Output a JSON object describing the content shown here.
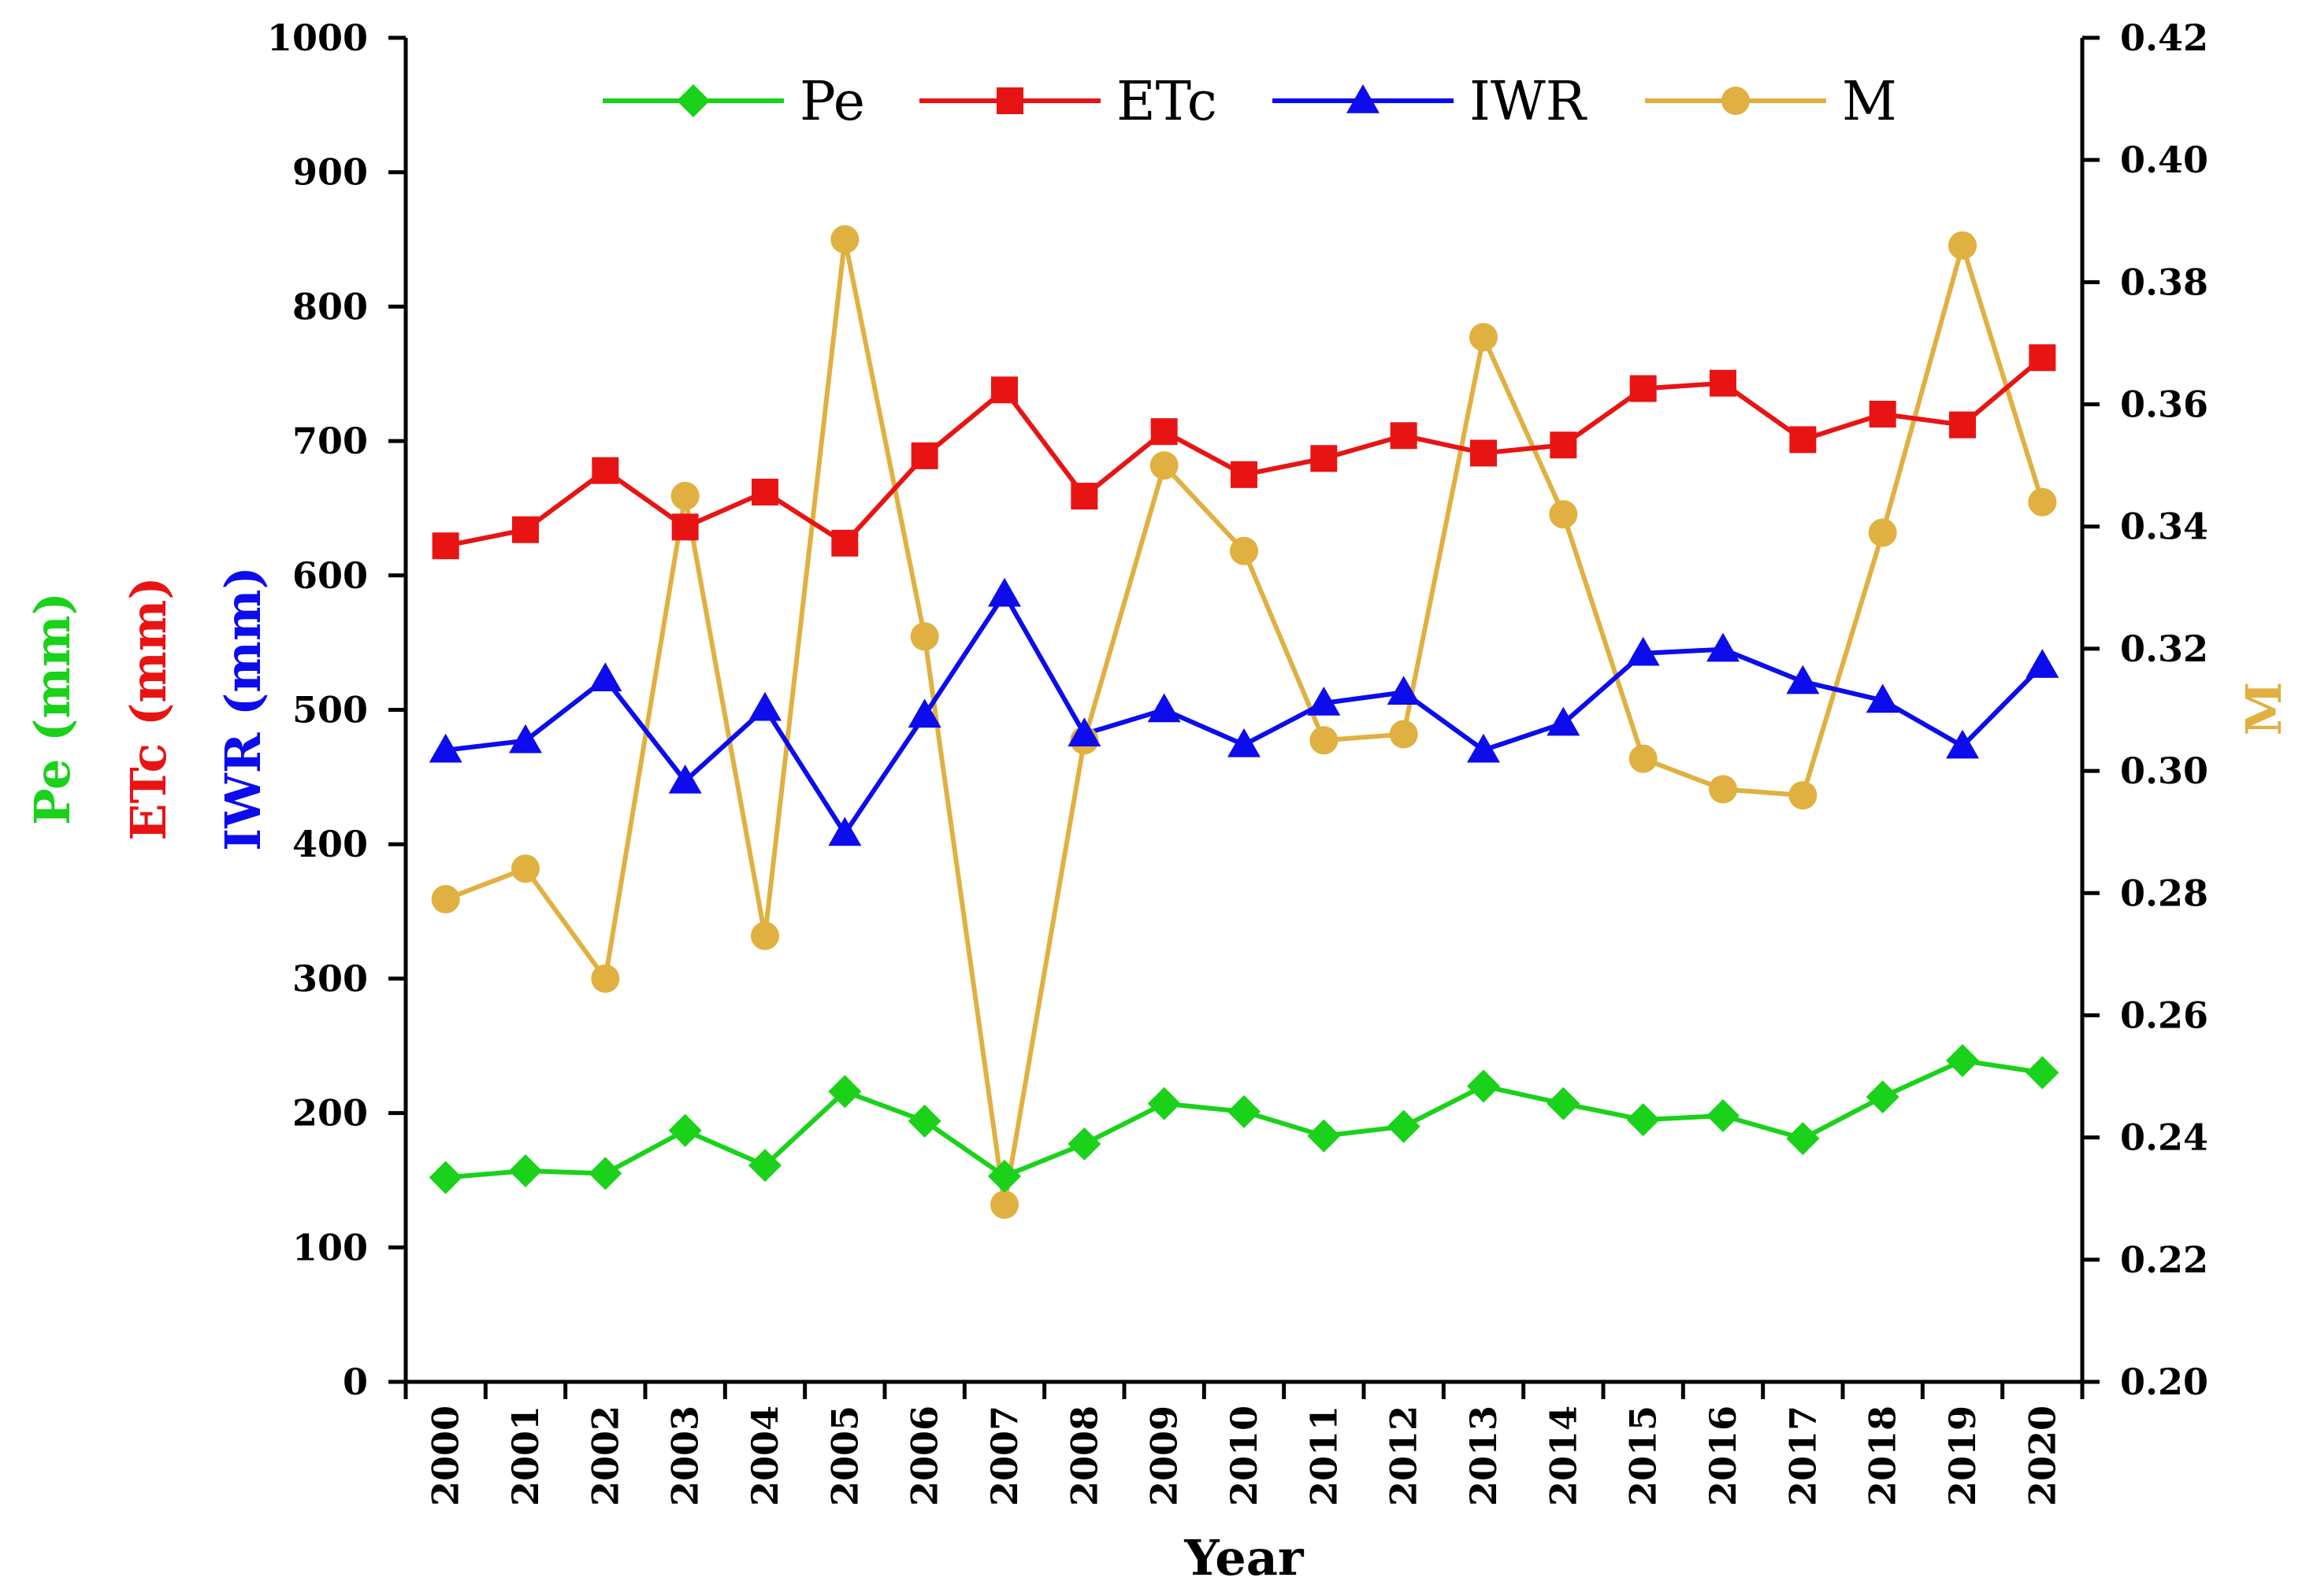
{
  "chart_data": {
    "type": "line",
    "xlabel": "Year",
    "categories": [
      "2000",
      "2001",
      "2002",
      "2003",
      "2004",
      "2005",
      "2006",
      "2007",
      "2008",
      "2009",
      "2010",
      "2011",
      "2012",
      "2013",
      "2014",
      "2015",
      "2016",
      "2017",
      "2018",
      "2019",
      "2020"
    ],
    "left_axis": {
      "labels": [
        {
          "text": "Pe (mm)",
          "color": "#19d219"
        },
        {
          "text": "ETc (mm)",
          "color": "#e81414"
        },
        {
          "text": "IWR (mm)",
          "color": "#0c0cec"
        }
      ],
      "ylim": [
        0,
        1000
      ],
      "ticks": [
        "0",
        "100",
        "200",
        "300",
        "400",
        "500",
        "600",
        "700",
        "800",
        "900",
        "1000"
      ]
    },
    "right_axis": {
      "label": "M",
      "color": "#e0b040",
      "ylim": [
        0.2,
        0.42
      ],
      "ticks": [
        "0.20",
        "0.22",
        "0.24",
        "0.26",
        "0.28",
        "0.30",
        "0.32",
        "0.34",
        "0.36",
        "0.38",
        "0.40",
        "0.42"
      ]
    },
    "series": [
      {
        "name": "Pe",
        "axis": "left",
        "marker": "diamond",
        "color": "#19d219",
        "values": [
          152,
          157,
          155,
          187,
          161,
          216,
          194,
          153,
          177,
          207,
          201,
          183,
          190,
          220,
          207,
          195,
          198,
          181,
          212,
          239,
          230
        ]
      },
      {
        "name": "ETc",
        "axis": "left",
        "marker": "square",
        "color": "#e81414",
        "values": [
          622,
          634,
          678,
          636,
          662,
          624,
          689,
          738,
          659,
          707,
          675,
          687,
          704,
          691,
          697,
          739,
          743,
          701,
          720,
          712,
          762
        ]
      },
      {
        "name": "IWR",
        "axis": "left",
        "marker": "triangle",
        "color": "#0c0cec",
        "values": [
          470,
          477,
          523,
          447,
          501,
          408,
          496,
          586,
          482,
          500,
          474,
          505,
          513,
          470,
          490,
          542,
          545,
          521,
          507,
          473,
          533
        ]
      },
      {
        "name": "M",
        "axis": "right",
        "marker": "circle",
        "color": "#e0b040",
        "values": [
          0.279,
          0.284,
          0.266,
          0.345,
          0.273,
          0.387,
          0.322,
          0.229,
          0.305,
          0.35,
          0.336,
          0.305,
          0.306,
          0.371,
          0.342,
          0.302,
          0.297,
          0.296,
          0.339,
          0.386,
          0.344
        ]
      }
    ],
    "legend": {
      "entries": [
        "Pe",
        "ETc",
        "IWR",
        "M"
      ],
      "placement": "top"
    }
  }
}
